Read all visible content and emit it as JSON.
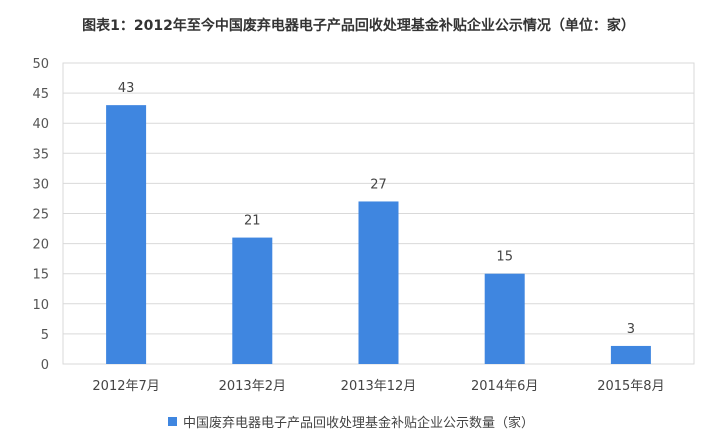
{
  "chart_data": {
    "type": "bar",
    "title": "图表1：2012年至今中国废弃电器电子产品回收处理基金补贴企业公示情况（单位：家）",
    "categories": [
      "2012年7月",
      "2013年2月",
      "2013年12月",
      "2014年6月",
      "2015年8月"
    ],
    "series": [
      {
        "name": "中国废弃电器电子产品回收处理基金补贴企业公示数量（家）",
        "values": [
          43,
          21,
          27,
          15,
          3
        ]
      }
    ],
    "ylim": [
      0,
      50
    ],
    "yticks": [
      0,
      5,
      10,
      15,
      20,
      25,
      30,
      35,
      40,
      45,
      50
    ],
    "grid": true,
    "data_labels": true,
    "legend": "bottom",
    "color": "#3f86e0"
  }
}
